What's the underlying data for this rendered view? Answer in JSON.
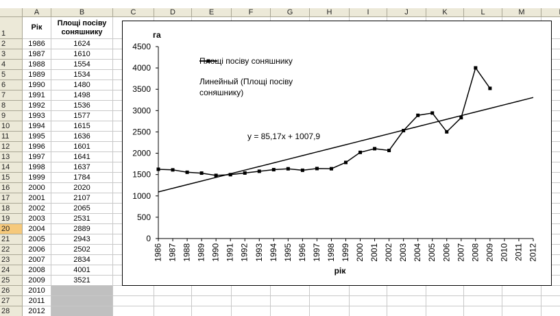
{
  "sheet": {
    "columns": [
      "A",
      "B",
      "C",
      "D",
      "E",
      "F",
      "G",
      "H",
      "I",
      "J",
      "K",
      "L",
      "M",
      "N"
    ],
    "row_numbers": [
      1,
      2,
      3,
      4,
      5,
      6,
      7,
      8,
      9,
      10,
      11,
      12,
      13,
      14,
      15,
      16,
      17,
      18,
      19,
      20,
      21,
      22,
      23,
      24,
      25,
      26,
      27,
      28
    ],
    "header": [
      "Рік",
      "Площі посіву соняшнику"
    ],
    "rows": [
      [
        1986,
        1624
      ],
      [
        1987,
        1610
      ],
      [
        1988,
        1554
      ],
      [
        1989,
        1534
      ],
      [
        1990,
        1480
      ],
      [
        1991,
        1498
      ],
      [
        1992,
        1536
      ],
      [
        1993,
        1577
      ],
      [
        1994,
        1615
      ],
      [
        1995,
        1636
      ],
      [
        1996,
        1601
      ],
      [
        1997,
        1641
      ],
      [
        1998,
        1637
      ],
      [
        1999,
        1784
      ],
      [
        2000,
        2020
      ],
      [
        2001,
        2107
      ],
      [
        2002,
        2065
      ],
      [
        2003,
        2531
      ],
      [
        2004,
        2889
      ],
      [
        2005,
        2943
      ],
      [
        2006,
        2502
      ],
      [
        2007,
        2834
      ],
      [
        2008,
        4001
      ],
      [
        2009,
        3521
      ],
      [
        2010,
        null
      ],
      [
        2011,
        null
      ],
      [
        2012,
        null
      ]
    ]
  },
  "chart_data": {
    "type": "line",
    "title": "га",
    "x_label": "рік",
    "annotation": "y = 85,17x + 1007,9",
    "categories": [
      1986,
      1987,
      1988,
      1989,
      1990,
      1991,
      1992,
      1993,
      1994,
      1995,
      1996,
      1997,
      1998,
      1999,
      2000,
      2001,
      2002,
      2003,
      2004,
      2005,
      2006,
      2007,
      2008,
      2009,
      2010,
      2011,
      2012
    ],
    "series": [
      {
        "name": "Площі посіву соняшнику",
        "color": "#000000",
        "marker": "square",
        "values": [
          1624,
          1610,
          1554,
          1534,
          1480,
          1498,
          1536,
          1577,
          1615,
          1636,
          1601,
          1641,
          1637,
          1784,
          2020,
          2107,
          2065,
          2531,
          2889,
          2943,
          2502,
          2834,
          4001,
          3521,
          null,
          null,
          null
        ]
      },
      {
        "name": "Линейный (Площі посіву соняшнику)",
        "color": "#000000",
        "values": [
          1093,
          1178,
          1263,
          1349,
          1434,
          1519,
          1604,
          1689,
          1774,
          1860,
          1945,
          2030,
          2115,
          2200,
          2285,
          2371,
          2456,
          2541,
          2626,
          2711,
          2796,
          2882,
          2967,
          3052,
          3137,
          3222,
          3307
        ]
      }
    ],
    "ylim": [
      0,
      4500
    ],
    "yticks": [
      0,
      500,
      1000,
      1500,
      2000,
      2500,
      3000,
      3500,
      4000,
      4500
    ],
    "legend": "top-left",
    "grid": false
  }
}
